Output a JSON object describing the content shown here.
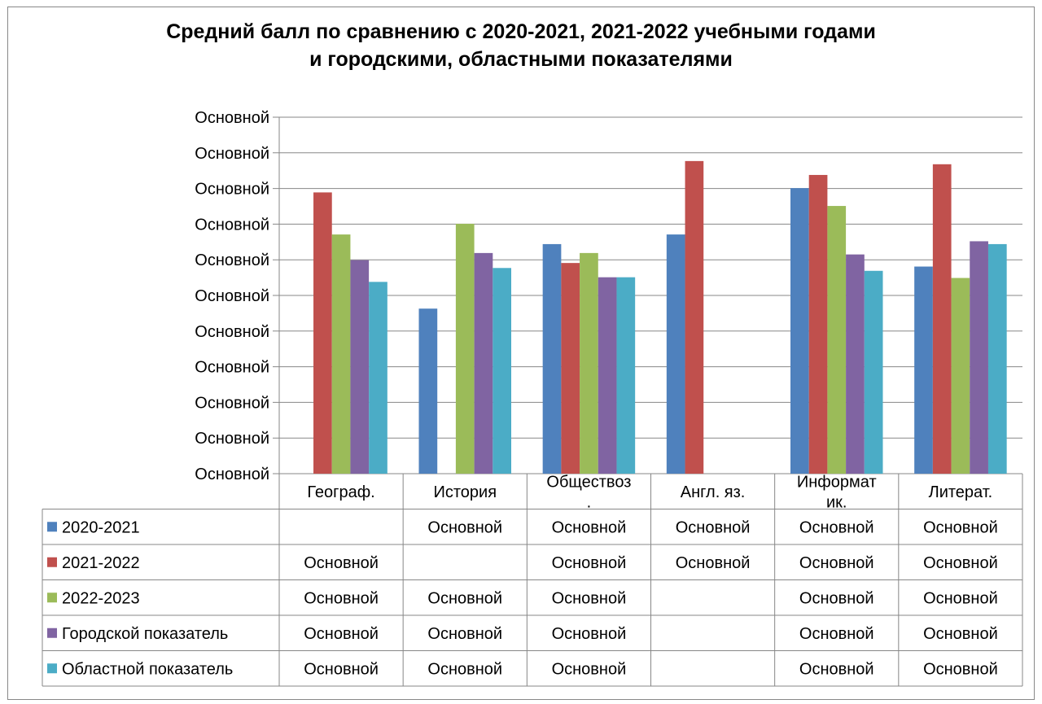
{
  "chart_data": {
    "type": "bar",
    "title": "Средний балл по сравнению с 2020-2021, 2021-2022 учебными годами\nи городскими, областными показателями",
    "xlabel": "",
    "ylabel": "",
    "ylim": [
      0,
      100
    ],
    "y_tick_labels": [
      "Основной",
      "Основной",
      "Основной",
      "Основной",
      "Основной",
      "Основной",
      "Основной",
      "Основной",
      "Основной",
      "Основной",
      "Основной"
    ],
    "categories": [
      "Географ.",
      "История",
      "Обществоз\n.",
      "Англ. яз.",
      "Информат\nик.",
      "Литерат."
    ],
    "series": [
      {
        "name": "2020-2021",
        "color": "#4F81BD",
        "values": [
          null,
          46.3,
          64.4,
          67.1,
          80.1,
          58.1
        ],
        "table_labels": [
          "",
          "Основной",
          "Основной",
          "Основной",
          "Основной",
          "Основной"
        ]
      },
      {
        "name": "2021-2022",
        "color": "#C0504D",
        "values": [
          78.9,
          null,
          59.1,
          87.7,
          83.8,
          86.8
        ],
        "table_labels": [
          "Основной",
          "",
          "Основной",
          "Основной",
          "Основной",
          "Основной"
        ]
      },
      {
        "name": "2022-2023",
        "color": "#9BBB59",
        "values": [
          67.1,
          70.1,
          61.9,
          null,
          75.1,
          54.9
        ],
        "table_labels": [
          "Основной",
          "Основной",
          "Основной",
          "",
          "Основной",
          "Основной"
        ]
      },
      {
        "name": "Городской показатель",
        "color": "#8064A2",
        "values": [
          59.9,
          61.9,
          55.1,
          null,
          61.5,
          65.2
        ],
        "table_labels": [
          "Основной",
          "Основной",
          "Основной",
          "",
          "Основной",
          "Основной"
        ]
      },
      {
        "name": "Областной показатель",
        "color": "#4BACC6",
        "values": [
          53.8,
          57.7,
          55.1,
          null,
          56.9,
          64.4
        ],
        "table_labels": [
          "Основной",
          "Основной",
          "Основной",
          "",
          "Основной",
          "Основной"
        ]
      }
    ],
    "grid": true,
    "legend": "data-table"
  }
}
